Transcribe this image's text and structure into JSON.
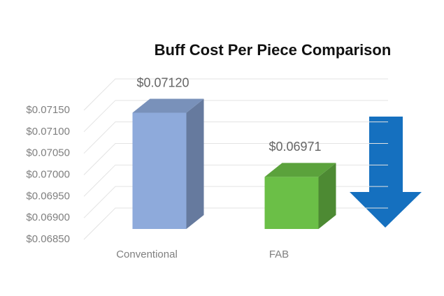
{
  "chart_data": {
    "type": "bar3d",
    "title": "Buff Cost Per Piece Comparison",
    "categories": [
      "Conventional",
      "FAB"
    ],
    "values": [
      0.0712,
      0.06971
    ],
    "value_labels": [
      "$0.07120",
      "$0.06971"
    ],
    "colors": [
      "#8eaadb",
      "#6bbf47"
    ],
    "ylim": [
      0.0685,
      0.0715
    ],
    "yticks": [
      {
        "value": 0.0685,
        "label": "$0.06850"
      },
      {
        "value": 0.069,
        "label": "$0.06900"
      },
      {
        "value": 0.0695,
        "label": "$0.06950"
      },
      {
        "value": 0.07,
        "label": "$0.07000"
      },
      {
        "value": 0.0705,
        "label": "$0.07050"
      },
      {
        "value": 0.071,
        "label": "$0.07100"
      },
      {
        "value": 0.0715,
        "label": "$0.07150"
      }
    ],
    "grid": true
  }
}
